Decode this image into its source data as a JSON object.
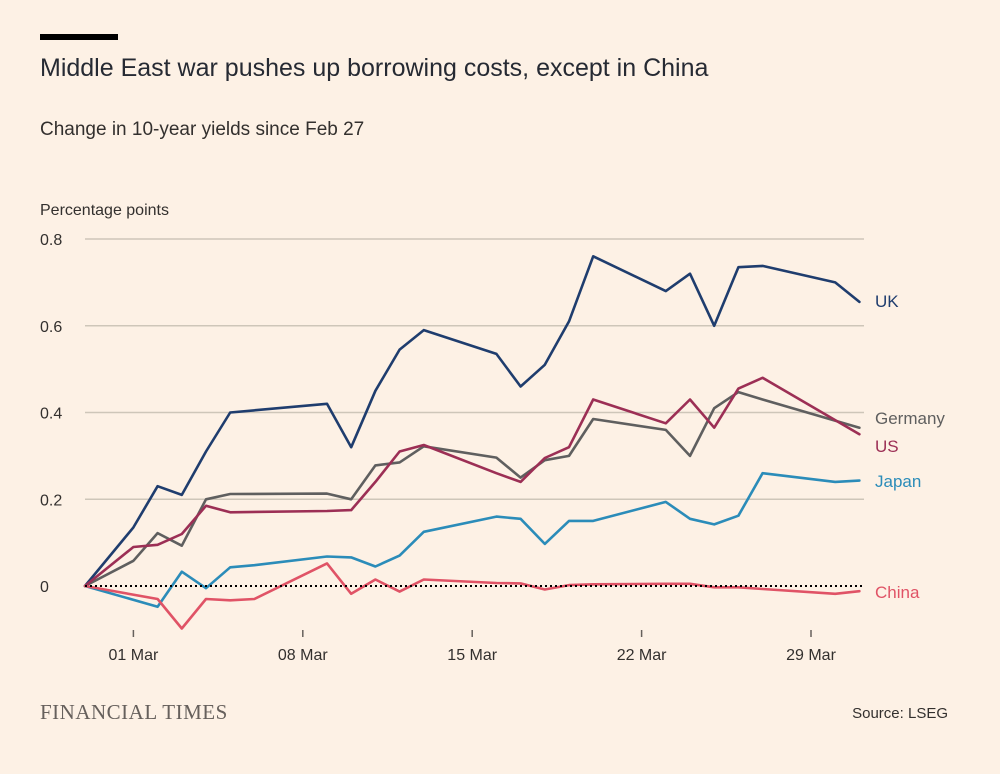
{
  "header": {
    "title": "Middle East war pushes up borrowing costs, except in China",
    "subtitle": "Change in 10-year yields since Feb 27"
  },
  "footer": {
    "brand": "FINANCIAL TIMES",
    "source": "Source: LSEG"
  },
  "chart_data": {
    "type": "line",
    "title": "Middle East war pushes up borrowing costs, except in China",
    "subtitle": "Change in 10-year yields since Feb 27",
    "ylabel": "Percentage points",
    "xlabel": "",
    "ylim": [
      -0.1,
      0.8
    ],
    "yticks": [
      0,
      0.2,
      0.4,
      0.6,
      0.8
    ],
    "ytick_labels": [
      "0",
      "0.2",
      "0.4",
      "0.6",
      "0.8"
    ],
    "zero_line": "dotted",
    "grid": true,
    "xlim": [
      0,
      31.5
    ],
    "xticks": [
      {
        "day": 2,
        "label": "01 Mar"
      },
      {
        "day": 9,
        "label": "08 Mar"
      },
      {
        "day": 16,
        "label": "15 Mar"
      },
      {
        "day": 23,
        "label": "22 Mar"
      },
      {
        "day": 30,
        "label": "29 Mar"
      }
    ],
    "x_unit": "days since Feb 27",
    "series": [
      {
        "name": "UK",
        "label": "UK",
        "color": "#1f3d6e",
        "x": [
          0,
          2,
          3,
          4,
          5,
          6,
          10,
          11,
          12,
          13,
          14,
          17,
          18,
          19,
          20,
          21,
          24,
          25,
          26,
          27,
          28,
          31,
          32
        ],
        "values": [
          0,
          0.135,
          0.23,
          0.21,
          0.31,
          0.4,
          0.42,
          0.32,
          0.45,
          0.545,
          0.59,
          0.535,
          0.46,
          0.51,
          0.61,
          0.76,
          0.68,
          0.72,
          0.6,
          0.735,
          0.738,
          0.7,
          0.655
        ]
      },
      {
        "name": "Germany",
        "label": "Germany",
        "color": "#5f5f5f",
        "x": [
          0,
          2,
          3,
          4,
          5,
          6,
          10,
          11,
          12,
          13,
          14,
          17,
          18,
          19,
          20,
          21,
          24,
          25,
          26,
          27,
          28,
          32
        ],
        "values": [
          0,
          0.058,
          0.122,
          0.093,
          0.2,
          0.212,
          0.213,
          0.2,
          0.278,
          0.285,
          0.322,
          0.296,
          0.25,
          0.29,
          0.3,
          0.385,
          0.36,
          0.3,
          0.41,
          0.447,
          0.43,
          0.365
        ]
      },
      {
        "name": "US",
        "label": "US",
        "color": "#9c2f55",
        "x": [
          0,
          2,
          3,
          4,
          5,
          6,
          10,
          11,
          12,
          13,
          14,
          17,
          18,
          19,
          20,
          21,
          24,
          25,
          26,
          27,
          28,
          32
        ],
        "values": [
          0,
          0.09,
          0.095,
          0.12,
          0.185,
          0.17,
          0.173,
          0.175,
          0.24,
          0.31,
          0.325,
          0.26,
          0.24,
          0.295,
          0.32,
          0.43,
          0.375,
          0.43,
          0.365,
          0.455,
          0.48,
          0.35
        ]
      },
      {
        "name": "Japan",
        "label": "Japan",
        "color": "#2b8cb9",
        "x": [
          0,
          3,
          4,
          5,
          6,
          7,
          10,
          11,
          12,
          13,
          14,
          17,
          18,
          19,
          20,
          21,
          24,
          25,
          26,
          27,
          28,
          31,
          32
        ],
        "values": [
          0,
          -0.048,
          0.033,
          -0.005,
          0.043,
          0.048,
          0.068,
          0.066,
          0.045,
          0.07,
          0.125,
          0.16,
          0.155,
          0.097,
          0.15,
          0.15,
          0.194,
          0.155,
          0.142,
          0.162,
          0.26,
          0.24,
          0.243
        ]
      },
      {
        "name": "China",
        "label": "China",
        "color": "#e05366",
        "x": [
          0,
          3,
          4,
          5,
          6,
          7,
          10,
          11,
          12,
          13,
          14,
          17,
          18,
          19,
          20,
          21,
          24,
          25,
          26,
          27,
          28,
          31,
          32
        ],
        "values": [
          0,
          -0.03,
          -0.098,
          -0.03,
          -0.033,
          -0.03,
          0.052,
          -0.018,
          0.015,
          -0.013,
          0.015,
          0.007,
          0.006,
          -0.008,
          0.002,
          0.004,
          0.005,
          0.005,
          -0.003,
          -0.003,
          -0.007,
          -0.018,
          -0.012
        ]
      }
    ]
  }
}
